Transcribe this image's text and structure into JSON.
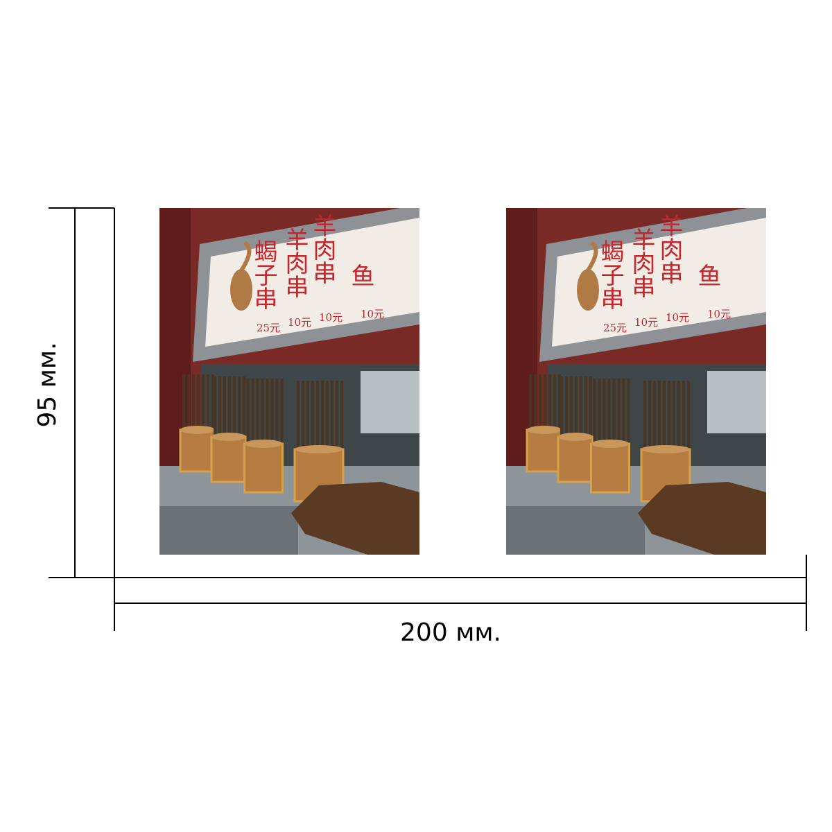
{
  "dimensions": {
    "height": "95 мм.",
    "width": "200 мм."
  },
  "photo": {
    "sign_columns": [
      "蝎子串",
      "羊肉串",
      "羊肉串",
      "鱼"
    ],
    "sign_prices": [
      "25元",
      "10元",
      "10元",
      "10元"
    ]
  }
}
